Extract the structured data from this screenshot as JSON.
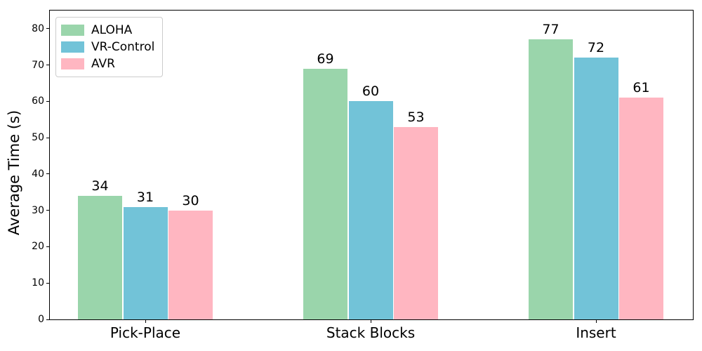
{
  "chart_data": {
    "type": "bar",
    "title": "",
    "xlabel": "",
    "ylabel": "Average Time (s)",
    "categories": [
      "Pick-Place",
      "Stack Blocks",
      "Insert"
    ],
    "series": [
      {
        "name": "ALOHA",
        "color": "#9ad5ab",
        "values": [
          34,
          69,
          77
        ]
      },
      {
        "name": "VR-Control",
        "color": "#72c3d8",
        "values": [
          31,
          60,
          72
        ]
      },
      {
        "name": "AVR",
        "color": "#ffb6c1",
        "values": [
          30,
          53,
          61
        ]
      }
    ],
    "bar_value_labels": true,
    "ylim": [
      0,
      85
    ],
    "yticks": [
      0,
      10,
      20,
      30,
      40,
      50,
      60,
      70,
      80
    ],
    "legend_position": "upper-left",
    "grid": false,
    "axis_color": "#000000",
    "background_color": "#ffffff"
  }
}
